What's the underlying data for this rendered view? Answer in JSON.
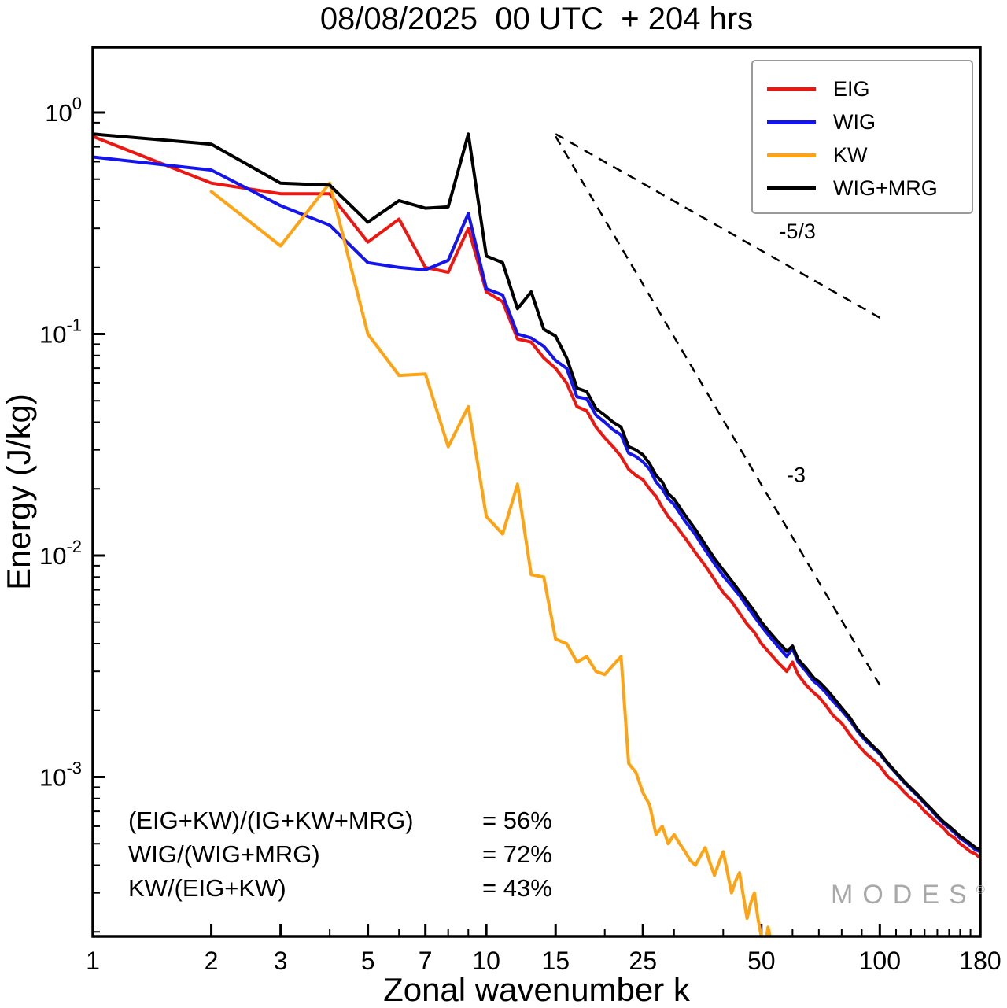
{
  "title": "08/08/2025  00 UTC  + 204 hrs",
  "watermark": {
    "text": "MODES",
    "symbol": "©"
  },
  "stats": {
    "rows": [
      {
        "expr": "(EIG+KW)/(IG+KW+MRG)",
        "value": "= 56%"
      },
      {
        "expr": "WIG/(WIG+MRG)",
        "value": "= 72%"
      },
      {
        "expr": "KW/(EIG+KW)",
        "value": "= 43%"
      }
    ]
  },
  "legend": {
    "items": [
      {
        "label": "EIG",
        "color": "#ee1611"
      },
      {
        "label": "WIG",
        "color": "#1414ee"
      },
      {
        "label": "KW",
        "color": "#ffa313"
      },
      {
        "label": "WIG+MRG",
        "color": "#000000"
      }
    ]
  },
  "chart_data": {
    "type": "line",
    "title": "08/08/2025  00 UTC  + 204 hrs",
    "xlabel": "Zonal wavenumber k",
    "ylabel": "Energy (J/kg)",
    "x_scale": "log",
    "y_scale": "log",
    "xlim": [
      1,
      180
    ],
    "ylim": [
      0.0002,
      2.0
    ],
    "x_ticks": [
      1,
      2,
      3,
      5,
      7,
      10,
      15,
      25,
      50,
      100,
      180
    ],
    "x_ticks_minor": [
      4,
      6,
      8,
      9,
      20,
      30,
      40,
      60,
      70,
      80,
      90,
      110,
      120,
      130,
      140,
      150,
      160,
      170
    ],
    "y_tick_exponents": [
      0,
      -1,
      -2,
      -3
    ],
    "grid": false,
    "legend_position": "upper right",
    "series": [
      {
        "name": "EIG",
        "color": "#ee1611",
        "width": 4,
        "points": [
          [
            1,
            0.78
          ],
          [
            2,
            0.48
          ],
          [
            3,
            0.43
          ],
          [
            4,
            0.43
          ],
          [
            5,
            0.26
          ],
          [
            6,
            0.33
          ],
          [
            7,
            0.2
          ],
          [
            8,
            0.19
          ],
          [
            9,
            0.3
          ],
          [
            10,
            0.155
          ],
          [
            11,
            0.14
          ],
          [
            12,
            0.095
          ],
          [
            13,
            0.092
          ],
          [
            14,
            0.078
          ],
          [
            15,
            0.07
          ],
          [
            16,
            0.06
          ],
          [
            17,
            0.047
          ],
          [
            18,
            0.045
          ],
          [
            19,
            0.038
          ],
          [
            20,
            0.034
          ],
          [
            21,
            0.031
          ],
          [
            22,
            0.028
          ],
          [
            23,
            0.0245
          ],
          [
            24,
            0.023
          ],
          [
            25,
            0.022
          ],
          [
            26,
            0.02
          ],
          [
            27,
            0.0185
          ],
          [
            28,
            0.0165
          ],
          [
            29,
            0.015
          ],
          [
            30,
            0.014
          ],
          [
            32,
            0.012
          ],
          [
            34,
            0.0103
          ],
          [
            36,
            0.009
          ],
          [
            38,
            0.0078
          ],
          [
            40,
            0.0068
          ],
          [
            42,
            0.0062
          ],
          [
            44,
            0.0055
          ],
          [
            46,
            0.0049
          ],
          [
            48,
            0.0045
          ],
          [
            50,
            0.004
          ],
          [
            52,
            0.0037
          ],
          [
            55,
            0.0033
          ],
          [
            58,
            0.003
          ],
          [
            60,
            0.0033
          ],
          [
            62,
            0.0029
          ],
          [
            65,
            0.0026
          ],
          [
            68,
            0.0024
          ],
          [
            70,
            0.0023
          ],
          [
            73,
            0.0021
          ],
          [
            76,
            0.0019
          ],
          [
            80,
            0.00175
          ],
          [
            84,
            0.00155
          ],
          [
            88,
            0.0014
          ],
          [
            92,
            0.00128
          ],
          [
            96,
            0.0012
          ],
          [
            100,
            0.00112
          ],
          [
            105,
            0.001
          ],
          [
            110,
            0.00094
          ],
          [
            115,
            0.00086
          ],
          [
            120,
            0.0008
          ],
          [
            125,
            0.00076
          ],
          [
            130,
            0.0007
          ],
          [
            135,
            0.00066
          ],
          [
            140,
            0.00062
          ],
          [
            145,
            0.00059
          ],
          [
            150,
            0.00055
          ],
          [
            155,
            0.00053
          ],
          [
            160,
            0.0005
          ],
          [
            165,
            0.00048
          ],
          [
            170,
            0.00046
          ],
          [
            175,
            0.00045
          ],
          [
            180,
            0.00043
          ]
        ]
      },
      {
        "name": "WIG",
        "color": "#1414ee",
        "width": 4,
        "points": [
          [
            1,
            0.63
          ],
          [
            2,
            0.55
          ],
          [
            3,
            0.38
          ],
          [
            4,
            0.31
          ],
          [
            5,
            0.21
          ],
          [
            6,
            0.2
          ],
          [
            7,
            0.195
          ],
          [
            8,
            0.215
          ],
          [
            9,
            0.35
          ],
          [
            10,
            0.16
          ],
          [
            11,
            0.15
          ],
          [
            12,
            0.1
          ],
          [
            13,
            0.096
          ],
          [
            14,
            0.088
          ],
          [
            15,
            0.076
          ],
          [
            16,
            0.07
          ],
          [
            17,
            0.052
          ],
          [
            18,
            0.051
          ],
          [
            19,
            0.043
          ],
          [
            20,
            0.04
          ],
          [
            21,
            0.037
          ],
          [
            22,
            0.035
          ],
          [
            23,
            0.029
          ],
          [
            24,
            0.028
          ],
          [
            25,
            0.0265
          ],
          [
            26,
            0.0245
          ],
          [
            27,
            0.0215
          ],
          [
            28,
            0.02
          ],
          [
            29,
            0.018
          ],
          [
            30,
            0.017
          ],
          [
            32,
            0.0143
          ],
          [
            34,
            0.0124
          ],
          [
            36,
            0.0106
          ],
          [
            38,
            0.0092
          ],
          [
            40,
            0.0081
          ],
          [
            42,
            0.0073
          ],
          [
            44,
            0.0066
          ],
          [
            46,
            0.0059
          ],
          [
            48,
            0.0053
          ],
          [
            50,
            0.0048
          ],
          [
            52,
            0.0044
          ],
          [
            55,
            0.0039
          ],
          [
            58,
            0.0035
          ],
          [
            60,
            0.0038
          ],
          [
            62,
            0.0033
          ],
          [
            65,
            0.003
          ],
          [
            68,
            0.0027
          ],
          [
            70,
            0.0026
          ],
          [
            73,
            0.0024
          ],
          [
            76,
            0.0022
          ],
          [
            80,
            0.002
          ],
          [
            84,
            0.0018
          ],
          [
            88,
            0.0016
          ],
          [
            92,
            0.00146
          ],
          [
            96,
            0.00136
          ],
          [
            100,
            0.00127
          ],
          [
            105,
            0.00114
          ],
          [
            110,
            0.00104
          ],
          [
            115,
            0.00095
          ],
          [
            120,
            0.00088
          ],
          [
            125,
            0.00082
          ],
          [
            130,
            0.00076
          ],
          [
            135,
            0.00071
          ],
          [
            140,
            0.00066
          ],
          [
            145,
            0.00062
          ],
          [
            150,
            0.00059
          ],
          [
            155,
            0.00056
          ],
          [
            160,
            0.00053
          ],
          [
            165,
            0.00051
          ],
          [
            170,
            0.00049
          ],
          [
            175,
            0.00047
          ],
          [
            180,
            0.00046
          ]
        ]
      },
      {
        "name": "KW",
        "color": "#ffa313",
        "width": 4,
        "points": [
          [
            2,
            0.44
          ],
          [
            3,
            0.25
          ],
          [
            4,
            0.48
          ],
          [
            5,
            0.1
          ],
          [
            6,
            0.065
          ],
          [
            7,
            0.066
          ],
          [
            8,
            0.031
          ],
          [
            9,
            0.047
          ],
          [
            10,
            0.015
          ],
          [
            11,
            0.0125
          ],
          [
            12,
            0.021
          ],
          [
            13,
            0.0082
          ],
          [
            14,
            0.008
          ],
          [
            15,
            0.0042
          ],
          [
            16,
            0.004
          ],
          [
            17,
            0.0033
          ],
          [
            18,
            0.0035
          ],
          [
            19,
            0.003
          ],
          [
            20,
            0.0029
          ],
          [
            21,
            0.0032
          ],
          [
            22,
            0.0035
          ],
          [
            23,
            0.00115
          ],
          [
            24,
            0.00105
          ],
          [
            25,
            0.00085
          ],
          [
            26,
            0.00075
          ],
          [
            27,
            0.00055
          ],
          [
            28,
            0.0006
          ],
          [
            29,
            0.0005
          ],
          [
            30,
            0.00055
          ],
          [
            31,
            0.0005
          ],
          [
            32,
            0.00046
          ],
          [
            33,
            0.00042
          ],
          [
            34,
            0.0004
          ],
          [
            35,
            0.00044
          ],
          [
            36,
            0.00048
          ],
          [
            37,
            0.00041
          ],
          [
            38,
            0.00036
          ],
          [
            39,
            0.00041
          ],
          [
            40,
            0.00046
          ],
          [
            41,
            0.00037
          ],
          [
            42,
            0.0003
          ],
          [
            43,
            0.00034
          ],
          [
            44,
            0.00037
          ],
          [
            45,
            0.00029
          ],
          [
            46,
            0.00023
          ],
          [
            47,
            0.00027
          ],
          [
            48,
            0.0003
          ],
          [
            49,
            0.00023
          ],
          [
            50,
            0.00019
          ],
          [
            51,
            0.00017
          ],
          [
            52,
            0.00021
          ],
          [
            53,
            0.00018
          ],
          [
            54,
            0.00016
          ],
          [
            55,
            0.00019
          ],
          [
            56,
            0.00015
          ],
          [
            57,
            0.00017
          ],
          [
            58,
            0.00014
          ],
          [
            60,
            0.00013
          ],
          [
            61,
            0.00019
          ],
          [
            62,
            0.00013
          ]
        ]
      },
      {
        "name": "WIG+MRG",
        "color": "#000000",
        "width": 4,
        "points": [
          [
            1,
            0.8
          ],
          [
            2,
            0.72
          ],
          [
            3,
            0.48
          ],
          [
            4,
            0.47
          ],
          [
            5,
            0.32
          ],
          [
            6,
            0.4
          ],
          [
            7,
            0.37
          ],
          [
            8,
            0.375
          ],
          [
            9,
            0.8
          ],
          [
            10,
            0.225
          ],
          [
            11,
            0.21
          ],
          [
            12,
            0.13
          ],
          [
            13,
            0.155
          ],
          [
            14,
            0.105
          ],
          [
            15,
            0.098
          ],
          [
            16,
            0.078
          ],
          [
            17,
            0.057
          ],
          [
            18,
            0.055
          ],
          [
            19,
            0.046
          ],
          [
            20,
            0.043
          ],
          [
            21,
            0.04
          ],
          [
            22,
            0.038
          ],
          [
            23,
            0.031
          ],
          [
            24,
            0.03
          ],
          [
            25,
            0.0285
          ],
          [
            26,
            0.026
          ],
          [
            27,
            0.023
          ],
          [
            28,
            0.0215
          ],
          [
            29,
            0.019
          ],
          [
            30,
            0.018
          ],
          [
            32,
            0.0152
          ],
          [
            34,
            0.0131
          ],
          [
            36,
            0.0112
          ],
          [
            38,
            0.0097
          ],
          [
            40,
            0.0086
          ],
          [
            42,
            0.0077
          ],
          [
            44,
            0.0069
          ],
          [
            46,
            0.0062
          ],
          [
            48,
            0.0056
          ],
          [
            50,
            0.005
          ],
          [
            52,
            0.0046
          ],
          [
            55,
            0.0041
          ],
          [
            58,
            0.0037
          ],
          [
            60,
            0.0039
          ],
          [
            62,
            0.0034
          ],
          [
            65,
            0.0031
          ],
          [
            68,
            0.0028
          ],
          [
            70,
            0.0027
          ],
          [
            73,
            0.0025
          ],
          [
            76,
            0.0023
          ],
          [
            80,
            0.00205
          ],
          [
            84,
            0.00185
          ],
          [
            88,
            0.00163
          ],
          [
            92,
            0.00149
          ],
          [
            96,
            0.00138
          ],
          [
            100,
            0.00129
          ],
          [
            105,
            0.00115
          ],
          [
            110,
            0.00105
          ],
          [
            115,
            0.00096
          ],
          [
            120,
            0.00089
          ],
          [
            125,
            0.00083
          ],
          [
            130,
            0.00077
          ],
          [
            135,
            0.00072
          ],
          [
            140,
            0.00067
          ],
          [
            145,
            0.00063
          ],
          [
            150,
            0.0006
          ],
          [
            155,
            0.00057
          ],
          [
            160,
            0.00054
          ],
          [
            165,
            0.00052
          ],
          [
            170,
            0.0005
          ],
          [
            175,
            0.00048
          ],
          [
            180,
            0.00047
          ]
        ]
      }
    ],
    "reference_lines": [
      {
        "label": "-5/3",
        "points": [
          [
            15,
            0.8
          ],
          [
            103,
            0.115
          ]
        ],
        "label_at": [
          55.5,
          0.27
        ]
      },
      {
        "label": "-3",
        "points": [
          [
            15,
            0.78
          ],
          [
            100,
            0.0026
          ]
        ],
        "label_at": [
          58,
          0.0215
        ]
      }
    ]
  }
}
